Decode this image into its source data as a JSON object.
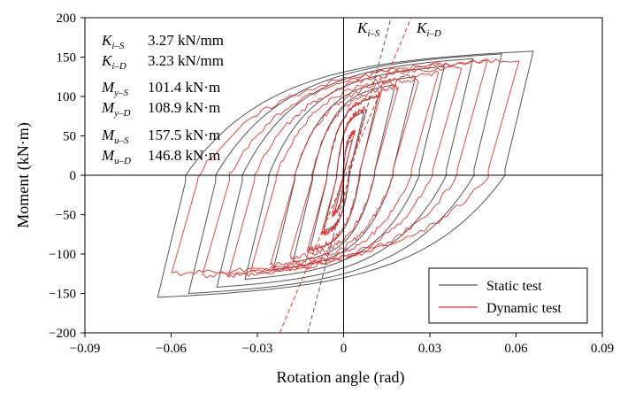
{
  "chart_data": {
    "type": "line",
    "title": "",
    "xlabel": "Rotation angle (rad)",
    "ylabel": "Moment (kN·m)",
    "xlim": [
      -0.09,
      0.09
    ],
    "ylim": [
      -200,
      200
    ],
    "xticks": [
      -0.09,
      -0.06,
      -0.03,
      0,
      0.03,
      0.06,
      0.09
    ],
    "xtick_labels": [
      "−0.09",
      "−0.06",
      "−0.03",
      "0",
      "0.03",
      "0.06",
      "0.09"
    ],
    "yticks": [
      -200,
      -150,
      -100,
      -50,
      0,
      50,
      100,
      150,
      200
    ],
    "ytick_labels": [
      "−200",
      "−150",
      "−100",
      "−50",
      "0",
      "50",
      "100",
      "150",
      "200"
    ],
    "grid": false,
    "legend": {
      "placement": "bottom-right",
      "entries": [
        {
          "label": "Static test",
          "color": "#555555"
        },
        {
          "label": "Dynamic test",
          "color": "#e8322f"
        }
      ]
    },
    "annotations": [
      {
        "symbol": "K",
        "sub": "i–S",
        "value": "3.27 kN/mm"
      },
      {
        "symbol": "K",
        "sub": "i–D",
        "value": "3.23 kN/mm"
      },
      {
        "symbol": "M",
        "sub": "y–S",
        "value": "101.4 kN·m"
      },
      {
        "symbol": "M",
        "sub": "y–D",
        "value": "108.9 kN·m"
      },
      {
        "symbol": "M",
        "sub": "u–S",
        "value": "157.5 kN·m"
      },
      {
        "symbol": "M",
        "sub": "u–D",
        "value": "146.8 kN·m"
      }
    ],
    "stiffness_lines": [
      {
        "label_symbol": "K",
        "label_sub": "i–S",
        "series": "Static test",
        "x": [
          -0.0125,
          0.0165
        ],
        "y": [
          -200,
          200
        ]
      },
      {
        "label_symbol": "K",
        "label_sub": "i–D",
        "series": "Dynamic test",
        "x": [
          -0.0222,
          0.0235
        ],
        "y": [
          -200,
          200
        ]
      }
    ],
    "series": [
      {
        "name": "Static test",
        "color": "#555555",
        "loops": [
          {
            "rot": 0.003,
            "Mpos": 45,
            "Mneg": -45
          },
          {
            "rot": 0.007,
            "Mpos": 80,
            "Mneg": -70
          },
          {
            "rot": 0.012,
            "Mpos": 100,
            "Mneg": -95
          },
          {
            "rot": 0.018,
            "Mpos": 115,
            "Mneg": -110
          },
          {
            "rot": 0.025,
            "Mpos": 125,
            "Mneg": -120
          },
          {
            "rot": 0.035,
            "Mpos": 138,
            "Mneg": -132
          },
          {
            "rot": 0.045,
            "Mpos": 148,
            "Mneg": -142
          },
          {
            "rot": 0.055,
            "Mpos": 154,
            "Mneg": -150
          },
          {
            "rot": 0.066,
            "Mpos": 157.5,
            "Mneg": -155
          }
        ]
      },
      {
        "name": "Dynamic test",
        "color": "#e8322f",
        "loops": [
          {
            "rot": 0.004,
            "Mpos": 55,
            "Mneg": -50
          },
          {
            "rot": 0.008,
            "Mpos": 85,
            "Mneg": -75
          },
          {
            "rot": 0.013,
            "Mpos": 102,
            "Mneg": -95
          },
          {
            "rot": 0.019,
            "Mpos": 112,
            "Mneg": -105
          },
          {
            "rot": 0.026,
            "Mpos": 122,
            "Mneg": -115
          },
          {
            "rot": 0.033,
            "Mpos": 130,
            "Mneg": -122
          },
          {
            "rot": 0.041,
            "Mpos": 138,
            "Mneg": -127
          },
          {
            "rot": 0.05,
            "Mpos": 144,
            "Mneg": -128
          },
          {
            "rot": 0.061,
            "Mpos": 146.8,
            "Mneg": -125
          }
        ]
      }
    ]
  }
}
